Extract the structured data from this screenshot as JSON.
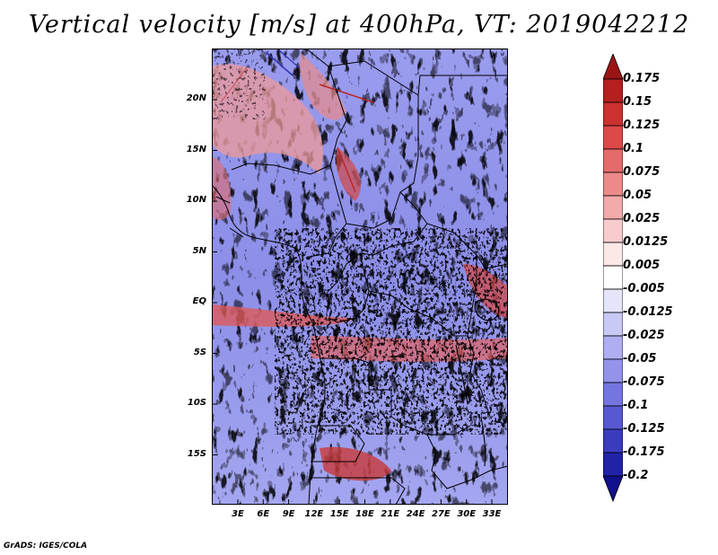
{
  "title": "Vertical velocity [m/s] at 400hPa, VT: 2019042212",
  "credit": "GrADS: IGES/COLA",
  "map": {
    "variable": "Vertical velocity",
    "units": "m/s",
    "level": "400hPa",
    "valid_time": "2019042212",
    "lat_labels": [
      "20N",
      "15N",
      "10N",
      "5N",
      "EQ",
      "5S",
      "10S",
      "15S"
    ],
    "lon_labels": [
      "3E",
      "6E",
      "9E",
      "12E",
      "15E",
      "18E",
      "21E",
      "24E",
      "27E",
      "30E",
      "33E"
    ],
    "colorbar": {
      "levels": [
        "0.175",
        "0.15",
        "0.125",
        "0.1",
        "0.075",
        "0.05",
        "0.025",
        "0.0125",
        "0.005",
        "-0.005",
        "-0.0125",
        "-0.025",
        "-0.05",
        "-0.075",
        "-0.1",
        "-0.125",
        "-0.175",
        "-0.2"
      ],
      "colors": [
        "#9b1515",
        "#b61f1f",
        "#cc3030",
        "#dd4848",
        "#e56a6a",
        "#ec8a8a",
        "#f2aaaa",
        "#f8cccc",
        "#fde8e8",
        "#ffffff",
        "#e4e4fb",
        "#c9c9f6",
        "#aeaef1",
        "#9393ea",
        "#7575e0",
        "#5858d2",
        "#3b3bc0",
        "#2222a8",
        "#10108c"
      ]
    }
  }
}
